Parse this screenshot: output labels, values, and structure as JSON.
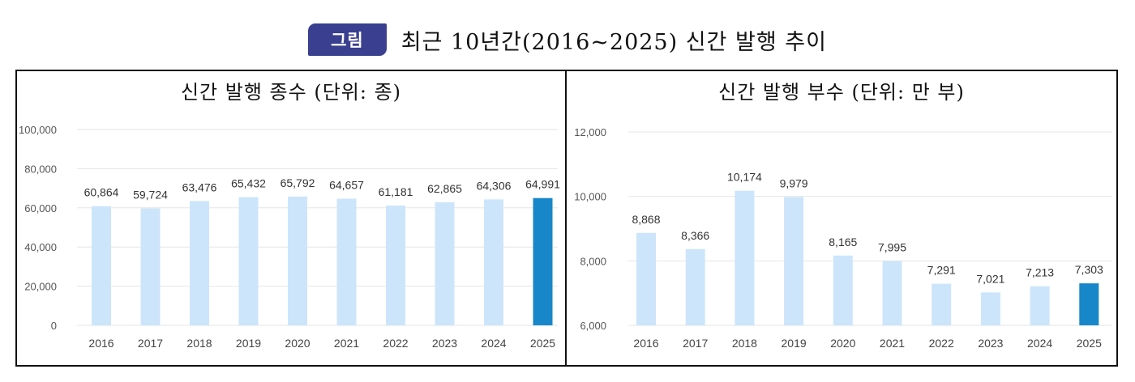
{
  "header": {
    "badge": "그림",
    "title": "최근 10년간(2016~2025) 신간 발행 추이"
  },
  "chart_data": [
    {
      "type": "bar",
      "title": "신간 발행 종수 (단위: 종)",
      "categories": [
        "2016",
        "2017",
        "2018",
        "2019",
        "2020",
        "2021",
        "2022",
        "2023",
        "2024",
        "2025"
      ],
      "values": [
        60864,
        59724,
        63476,
        65432,
        65792,
        64657,
        61181,
        62865,
        64306,
        64991
      ],
      "labels": [
        "60,864",
        "59,724",
        "63,476",
        "65,432",
        "65,792",
        "64,657",
        "61,181",
        "62,865",
        "64,306",
        "64,991"
      ],
      "yticks": [
        "0",
        "20,000",
        "40,000",
        "60,000",
        "80,000",
        "100,000"
      ],
      "ylim": [
        0,
        100000
      ],
      "grid": true,
      "colors": {
        "bar": "#cce5fb",
        "highlight": "#1787c9"
      },
      "highlight_index": 9
    },
    {
      "type": "bar",
      "title": "신간 발행 부수 (단위: 만 부)",
      "categories": [
        "2016",
        "2017",
        "2018",
        "2019",
        "2020",
        "2021",
        "2022",
        "2023",
        "2024",
        "2025"
      ],
      "values": [
        8868,
        8366,
        10174,
        9979,
        8165,
        7995,
        7291,
        7021,
        7213,
        7303
      ],
      "labels": [
        "8,868",
        "8,366",
        "10,174",
        "9,979",
        "8,165",
        "7,995",
        "7,291",
        "7,021",
        "7,213",
        "7,303"
      ],
      "yticks": [
        "6,000",
        "8,000",
        "10,000",
        "12,000"
      ],
      "ylim": [
        6000,
        12000
      ],
      "grid": true,
      "colors": {
        "bar": "#cce5fb",
        "highlight": "#1787c9"
      },
      "highlight_index": 9
    }
  ]
}
